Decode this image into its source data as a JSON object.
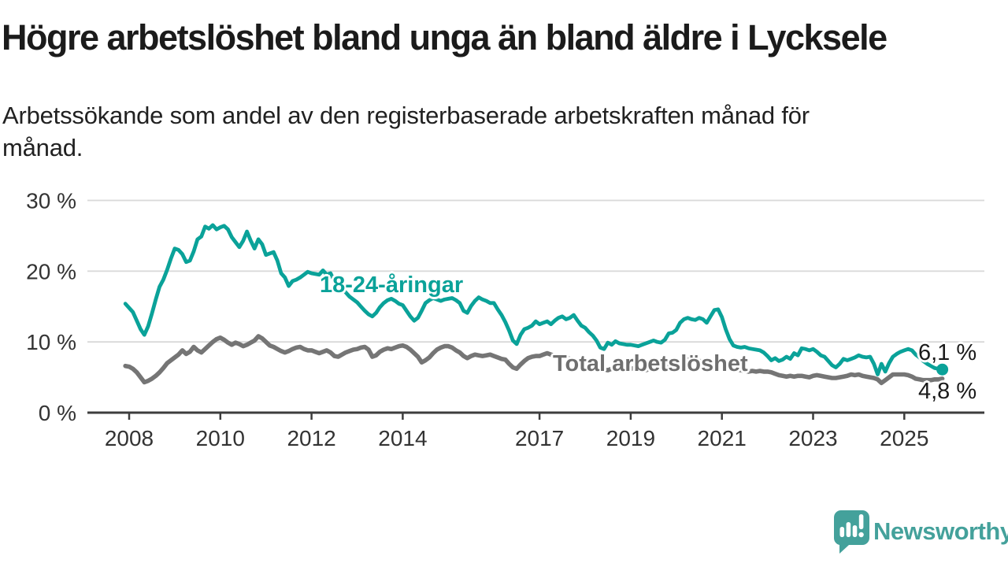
{
  "header": {
    "title": "Högre arbetslöshet bland unga än bland äldre i Lycksele",
    "subtitle_line1": "Arbetssökande som andel av den registerbaserade arbetskraften månad för",
    "subtitle_line2": "månad."
  },
  "footer": {
    "brand": "Newsworthy",
    "logo_icon": "speech-bubble-bar-chart-icon",
    "brand_color": "#44a19b"
  },
  "colors": {
    "youth_line": "#0aa299",
    "total_line": "#757575",
    "grid": "#d9d9d9",
    "axis": "#3d3d3d",
    "tick_text": "#333333"
  },
  "chart_data": {
    "type": "line",
    "unit": "percent of registered labour force",
    "grid": true,
    "legend": "inline-labels",
    "frequency": "monthly",
    "start": {
      "year": 2007,
      "month": 12
    },
    "end": {
      "year": 2025,
      "month": 11
    },
    "y_axis": {
      "min": 0,
      "max": 30,
      "ticks": [
        {
          "v": 0,
          "label": "0 %"
        },
        {
          "v": 10,
          "label": "10 %"
        },
        {
          "v": 20,
          "label": "20 %"
        },
        {
          "v": 30,
          "label": "30 %"
        }
      ]
    },
    "x_axis": {
      "ticks": [
        {
          "v": 2008,
          "label": "2008"
        },
        {
          "v": 2010,
          "label": "2010"
        },
        {
          "v": 2012,
          "label": "2012"
        },
        {
          "v": 2014,
          "label": "2014"
        },
        {
          "v": 2017,
          "label": "2017"
        },
        {
          "v": 2019,
          "label": "2019"
        },
        {
          "v": 2021,
          "label": "2021"
        },
        {
          "v": 2023,
          "label": "2023"
        },
        {
          "v": 2025,
          "label": "2025"
        }
      ]
    },
    "series": [
      {
        "id": "youth",
        "name": "18-24-åringar",
        "color": "#0aa299",
        "end_label": "6,1 %",
        "end_value": 6.1,
        "end_dot": true,
        "values": [
          15.4,
          14.8,
          14.2,
          13.0,
          11.8,
          11.0,
          12.2,
          14.0,
          16.0,
          17.8,
          18.8,
          20.2,
          21.8,
          23.2,
          23.0,
          22.4,
          21.3,
          21.5,
          22.8,
          24.5,
          24.9,
          26.3,
          26.0,
          26.5,
          25.9,
          26.2,
          26.4,
          25.9,
          24.8,
          24.1,
          23.4,
          24.3,
          25.6,
          24.3,
          23.2,
          24.5,
          23.8,
          22.3,
          22.5,
          22.7,
          21.5,
          19.7,
          19.1,
          17.9,
          18.6,
          18.8,
          19.1,
          19.5,
          19.9,
          19.7,
          19.6,
          19.5,
          20.1,
          19.5,
          19.7,
          18.6,
          18.2,
          17.6,
          17.0,
          16.4,
          16.0,
          15.6,
          15.0,
          14.4,
          13.9,
          13.6,
          14.1,
          14.9,
          15.5,
          15.9,
          16.1,
          15.8,
          15.4,
          15.2,
          14.4,
          13.6,
          13.0,
          13.4,
          14.4,
          15.5,
          15.9,
          16.2,
          16.0,
          15.8,
          16.0,
          16.1,
          16.2,
          15.9,
          15.5,
          14.4,
          14.1,
          15.1,
          15.8,
          16.3,
          16.0,
          15.8,
          15.5,
          15.5,
          14.6,
          13.8,
          12.8,
          11.6,
          10.2,
          9.7,
          11.0,
          11.8,
          12.0,
          12.3,
          12.9,
          12.5,
          12.7,
          12.9,
          12.5,
          13.0,
          13.4,
          13.6,
          13.2,
          13.4,
          13.8,
          13.0,
          12.3,
          12.0,
          11.4,
          10.9,
          10.2,
          9.2,
          9.0,
          9.9,
          9.6,
          10.1,
          9.8,
          9.7,
          9.6,
          9.6,
          9.5,
          9.4,
          9.6,
          9.8,
          10.0,
          10.2,
          10.0,
          9.9,
          10.3,
          11.2,
          11.3,
          11.7,
          12.7,
          13.2,
          13.4,
          13.2,
          13.1,
          13.4,
          13.2,
          12.7,
          13.6,
          14.5,
          14.6,
          13.5,
          11.8,
          10.4,
          9.5,
          9.3,
          9.2,
          9.3,
          9.1,
          9.0,
          8.9,
          8.8,
          8.5,
          8.0,
          7.4,
          7.7,
          7.3,
          7.5,
          7.9,
          7.6,
          8.4,
          8.1,
          9.1,
          9.0,
          8.8,
          9.0,
          8.6,
          8.1,
          7.9,
          7.3,
          6.7,
          6.4,
          6.9,
          7.6,
          7.4,
          7.6,
          7.8,
          8.1,
          7.9,
          7.8,
          7.9,
          6.9,
          5.4,
          6.9,
          5.8,
          7.0,
          7.9,
          8.3,
          8.6,
          8.8,
          9.0,
          8.8,
          8.2,
          7.8,
          7.3,
          6.9,
          6.6,
          6.3,
          6.2,
          6.1
        ]
      },
      {
        "id": "total",
        "name": "Total arbetslöshet",
        "color": "#757575",
        "end_label": "4,8 %",
        "end_value": 4.8,
        "end_dot": false,
        "values": [
          6.6,
          6.5,
          6.2,
          5.7,
          5.0,
          4.3,
          4.5,
          4.8,
          5.2,
          5.7,
          6.3,
          7.0,
          7.4,
          7.8,
          8.2,
          8.8,
          8.3,
          8.6,
          9.3,
          8.8,
          8.5,
          9.0,
          9.5,
          10.0,
          10.4,
          10.6,
          10.3,
          9.9,
          9.6,
          9.9,
          9.7,
          9.4,
          9.6,
          9.9,
          10.2,
          10.8,
          10.5,
          10.0,
          9.5,
          9.3,
          9.0,
          8.7,
          8.5,
          8.7,
          9.0,
          9.2,
          9.3,
          9.0,
          8.8,
          8.8,
          8.6,
          8.4,
          8.6,
          8.8,
          8.5,
          8.0,
          7.9,
          8.2,
          8.5,
          8.7,
          8.9,
          9.0,
          9.2,
          9.3,
          8.9,
          7.9,
          8.1,
          8.6,
          8.9,
          9.1,
          9.0,
          9.2,
          9.4,
          9.5,
          9.3,
          8.9,
          8.4,
          7.9,
          7.1,
          7.4,
          7.8,
          8.4,
          8.9,
          9.2,
          9.4,
          9.4,
          9.2,
          8.8,
          8.5,
          8.0,
          7.7,
          8.0,
          8.2,
          8.1,
          8.0,
          8.1,
          8.2,
          8.0,
          7.8,
          7.6,
          7.5,
          6.9,
          6.4,
          6.2,
          6.8,
          7.3,
          7.7,
          7.9,
          8.0,
          8.0,
          8.2,
          8.4,
          8.2,
          8.0,
          7.9,
          8.0,
          7.8,
          7.6,
          7.4,
          7.2,
          7.0,
          6.9,
          6.8,
          6.7,
          6.5,
          6.3,
          6.1,
          6.0,
          6.2,
          6.4,
          6.3,
          6.2,
          6.1,
          6.2,
          6.3,
          6.2,
          6.1,
          6.0,
          6.2,
          6.4,
          6.3,
          6.5,
          6.6,
          6.8,
          7.0,
          7.1,
          7.3,
          7.5,
          7.6,
          7.5,
          7.4,
          7.3,
          7.2,
          7.0,
          6.9,
          6.8,
          6.7,
          6.6,
          6.5,
          6.4,
          6.3,
          6.1,
          6.0,
          5.9,
          5.8,
          5.9,
          5.8,
          5.9,
          5.8,
          5.8,
          5.7,
          5.5,
          5.3,
          5.2,
          5.1,
          5.2,
          5.1,
          5.2,
          5.2,
          5.1,
          5.0,
          5.2,
          5.3,
          5.2,
          5.1,
          5.0,
          4.9,
          4.9,
          5.0,
          5.1,
          5.2,
          5.4,
          5.3,
          5.4,
          5.2,
          5.1,
          5.0,
          4.9,
          4.7,
          4.2,
          4.6,
          5.0,
          5.4,
          5.4,
          5.4,
          5.4,
          5.3,
          5.1,
          4.8,
          4.7,
          4.6,
          4.6,
          4.6,
          4.7,
          4.7,
          4.8
        ]
      }
    ]
  }
}
